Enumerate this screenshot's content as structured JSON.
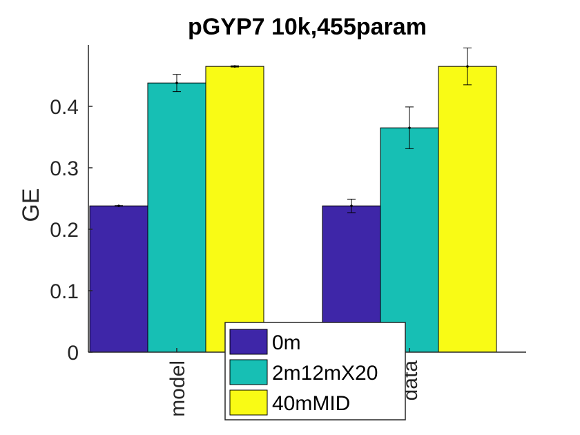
{
  "chart_data": {
    "type": "bar",
    "title": "pGYP7 10k,455param",
    "xlabel": "",
    "ylabel": "GE",
    "categories": [
      "model",
      "data"
    ],
    "ylim": [
      0,
      0.5
    ],
    "yticks": [
      0,
      0.1,
      0.2,
      0.3,
      0.4
    ],
    "ytick_labels": [
      "0",
      "0.1",
      "0.2",
      "0.3",
      "0.4"
    ],
    "grid": false,
    "legend_position": "bottom-center",
    "series": [
      {
        "name": "0m",
        "color": "#3e26a8",
        "values": [
          0.238,
          0.238
        ],
        "errors": [
          0.0005,
          0.011
        ]
      },
      {
        "name": "2m12mX20",
        "color": "#17bfb4",
        "values": [
          0.438,
          0.365
        ],
        "errors": [
          0.014,
          0.034
        ]
      },
      {
        "name": "40mMID",
        "color": "#f9fb15",
        "values": [
          0.465,
          0.465
        ],
        "errors": [
          0.001,
          0.03
        ]
      }
    ]
  }
}
